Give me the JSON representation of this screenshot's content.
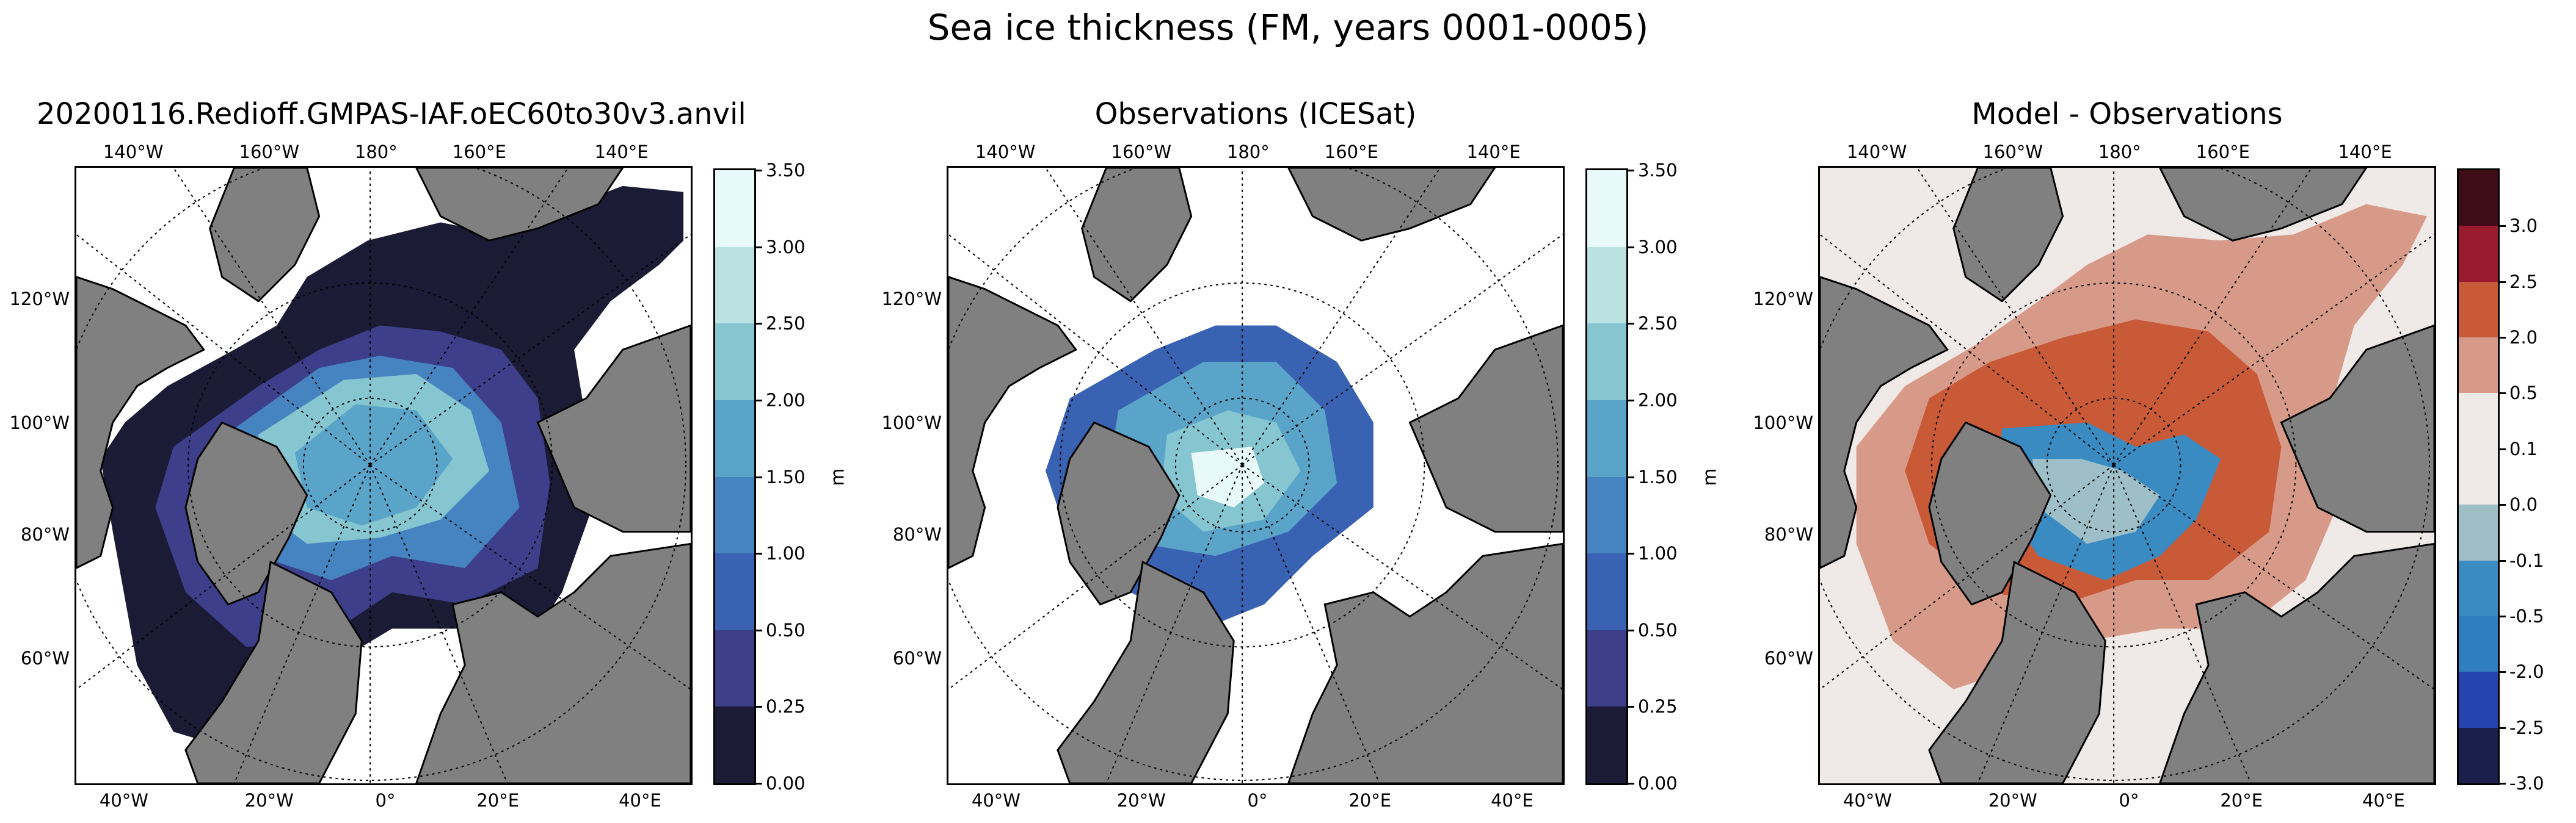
{
  "title": "Sea ice thickness (FM, years 0001-0005)",
  "panels": [
    {
      "title": "20200116.Redioff.GMPAS-IAF.oEC60to30v3.anvil",
      "kind": "model"
    },
    {
      "title": "Observations (ICESat)",
      "kind": "obs"
    },
    {
      "title": "Model - Observations",
      "kind": "diff"
    }
  ],
  "map_labels": {
    "top": [
      "140°W",
      "160°W",
      "180°",
      "160°E",
      "140°E"
    ],
    "left": [
      "120°W",
      "100°W",
      "80°W",
      "60°W"
    ],
    "bottom": [
      "40°W",
      "20°W",
      "0°",
      "20°E",
      "40°E"
    ]
  },
  "colorbars": {
    "thickness": {
      "unit": "m",
      "ticks": [
        "0.00",
        "0.25",
        "0.50",
        "1.00",
        "1.50",
        "2.00",
        "2.50",
        "3.00",
        "3.50"
      ],
      "colors": [
        "#1b1b36",
        "#3d3f8a",
        "#3a62b3",
        "#4584c0",
        "#5aa3c9",
        "#86c6d1",
        "#b9e2e1",
        "#e8f9f9"
      ]
    },
    "difference": {
      "unit": "m",
      "ticks": [
        "-3.0",
        "-2.5",
        "-2.0",
        "-0.5",
        "-0.1",
        "0.0",
        "0.1",
        "0.5",
        "2.0",
        "2.5",
        "3.0"
      ],
      "colors": [
        "#1a1f4b",
        "#2544b0",
        "#2f7fc0",
        "#3a8bc1",
        "#9fbfc8",
        "#efe9e8",
        "#efe9e8",
        "#d89a88",
        "#c85a38",
        "#9a1b2e",
        "#3f0c17"
      ]
    }
  },
  "colors": {
    "land": "#808080",
    "background": "#ffffff",
    "diff_zero": "#efe9e8"
  }
}
